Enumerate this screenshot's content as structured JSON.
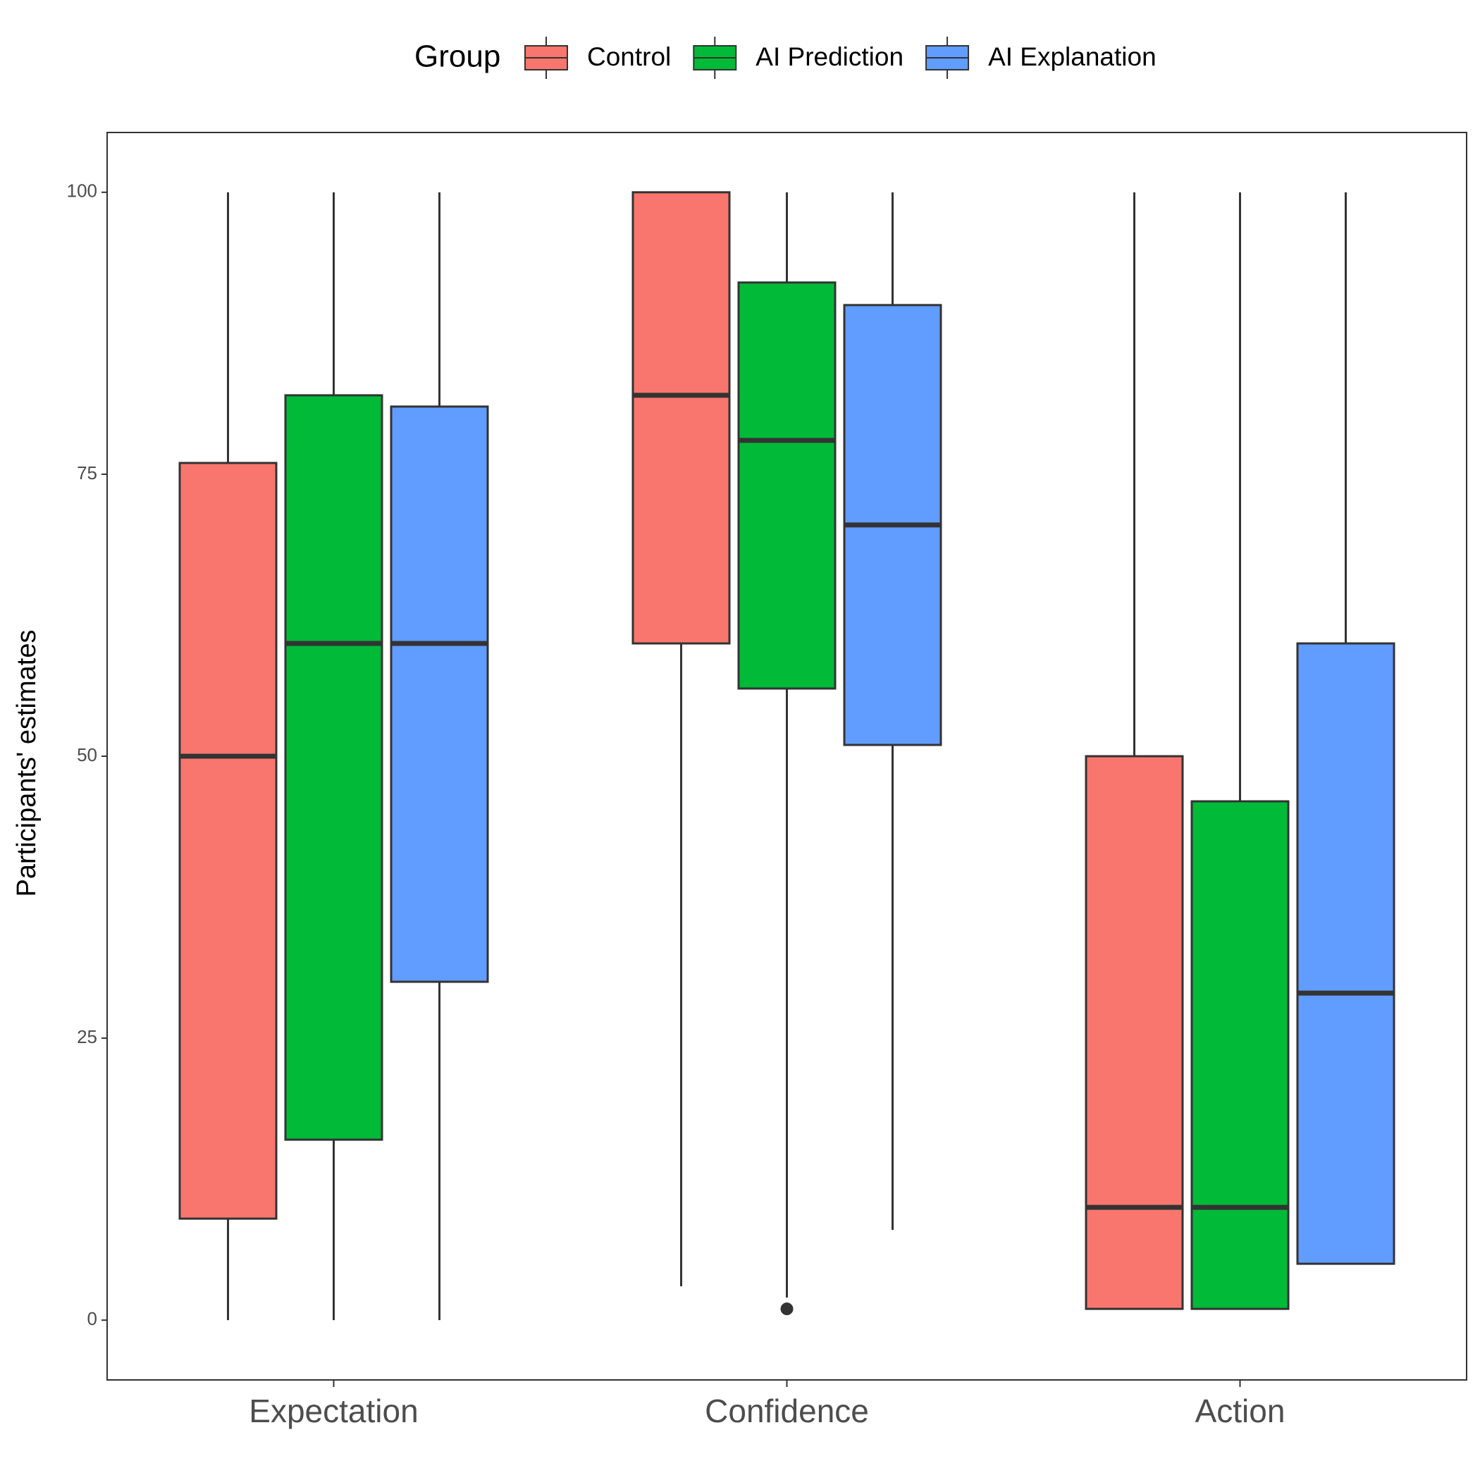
{
  "chart_data": {
    "type": "box",
    "y_label": "Participants' estimates",
    "legend_title": "Group",
    "legend_position": "top",
    "categories": [
      "Expectation",
      "Confidence",
      "Action"
    ],
    "ylim": [
      -5.3,
      105.3
    ],
    "yticks": [
      0,
      25,
      50,
      75,
      100
    ],
    "series": [
      {
        "name": "Control",
        "color": "#f8766d",
        "low": [
          0,
          3,
          1
        ],
        "q1": [
          9,
          60,
          1
        ],
        "median": [
          50,
          82,
          10
        ],
        "q3": [
          76,
          100,
          50
        ],
        "high": [
          100,
          100,
          100
        ],
        "outliers": [
          [],
          [],
          []
        ]
      },
      {
        "name": "AI Prediction",
        "color": "#00ba38",
        "low": [
          0,
          2,
          1
        ],
        "q1": [
          16,
          56,
          1
        ],
        "median": [
          60,
          78,
          10
        ],
        "q3": [
          82,
          92,
          46
        ],
        "high": [
          100,
          100,
          100
        ],
        "outliers": [
          [],
          [
            1
          ],
          []
        ]
      },
      {
        "name": "AI Explanation",
        "color": "#619cff",
        "low": [
          0,
          8,
          5
        ],
        "q1": [
          30,
          51,
          5
        ],
        "median": [
          60,
          70.5,
          29
        ],
        "q3": [
          81,
          90,
          60
        ],
        "high": [
          100,
          100,
          100
        ],
        "outliers": [
          [],
          [],
          []
        ]
      }
    ]
  }
}
